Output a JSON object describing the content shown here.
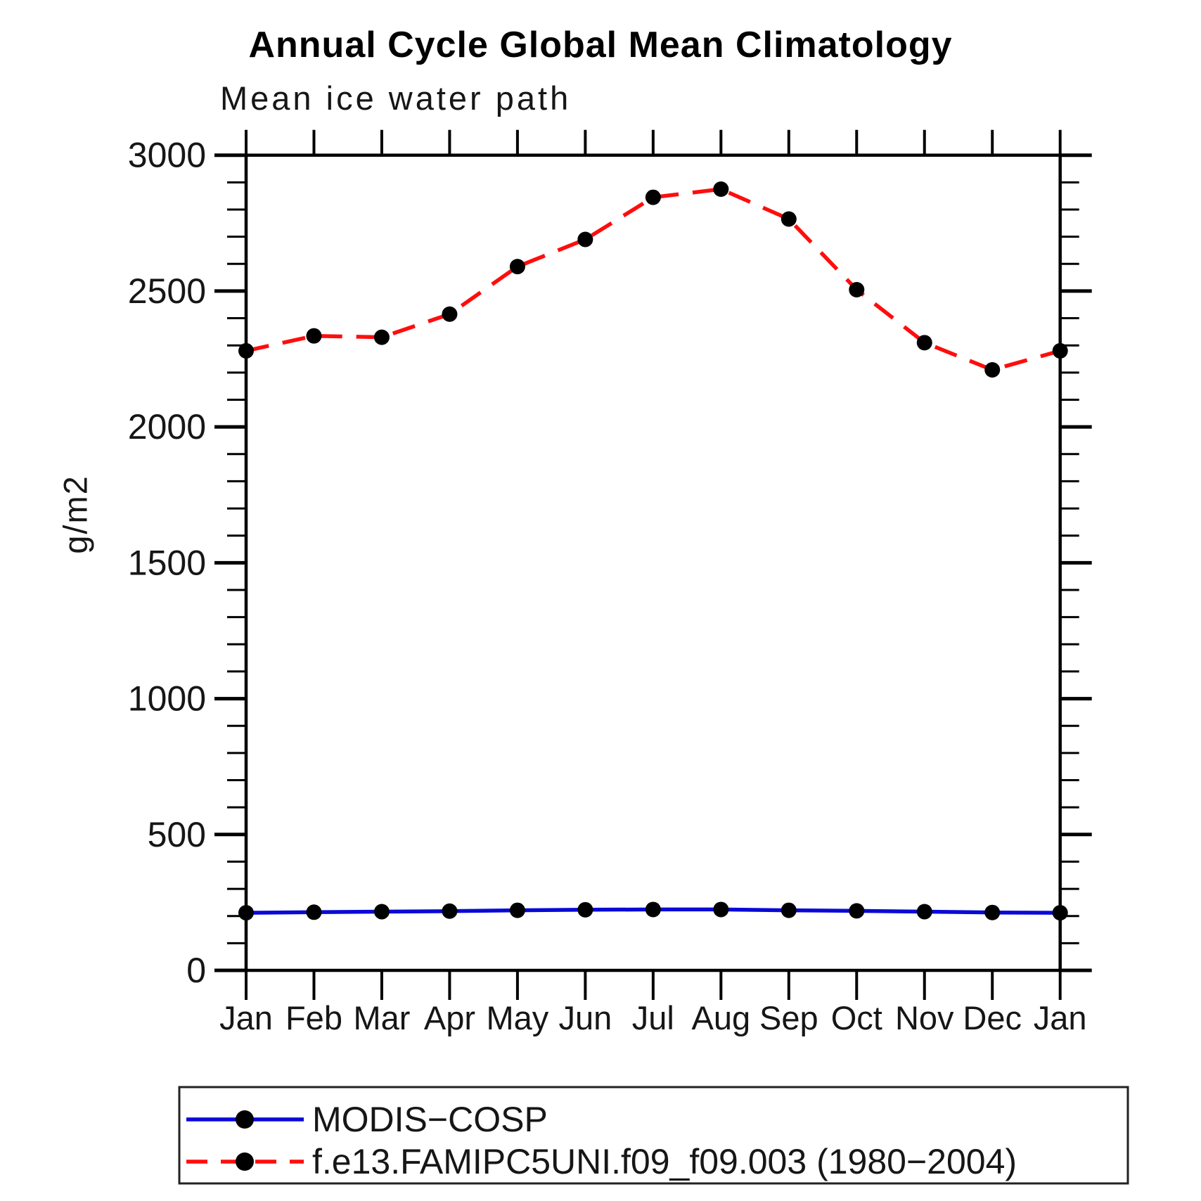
{
  "title": "Annual Cycle Global Mean Climatology",
  "subtitle": "Mean ice water path",
  "chart_data": {
    "type": "line",
    "title": "Annual Cycle Global Mean Climatology",
    "subtitle": "Mean ice water path",
    "xlabel": "",
    "ylabel": "g/m2",
    "categories": [
      "Jan",
      "Feb",
      "Mar",
      "Apr",
      "May",
      "Jun",
      "Jul",
      "Aug",
      "Sep",
      "Oct",
      "Nov",
      "Dec",
      "Jan"
    ],
    "ylim": [
      0,
      3000
    ],
    "ytick_step": 500,
    "yminor_step": 100,
    "ytick_labels": [
      "0",
      "500",
      "1000",
      "1500",
      "2000",
      "2500",
      "3000"
    ],
    "grid": false,
    "legend_position": "bottom-box",
    "marker_color": "#000000",
    "axis_color": "#000000",
    "series": [
      {
        "name": "MODIS−COSP",
        "color": "#0909d6",
        "style": "solid",
        "values": [
          212,
          214,
          216,
          218,
          221,
          223,
          224,
          224,
          221,
          219,
          216,
          213,
          212
        ]
      },
      {
        "name": "f.e13.FAMIPC5UNI.f09_f09.003 (1980−2004)",
        "color": "#ff0d0d",
        "style": "dashed",
        "values": [
          2280,
          2335,
          2330,
          2415,
          2590,
          2690,
          2845,
          2875,
          2765,
          2505,
          2310,
          2210,
          2280
        ]
      }
    ]
  }
}
